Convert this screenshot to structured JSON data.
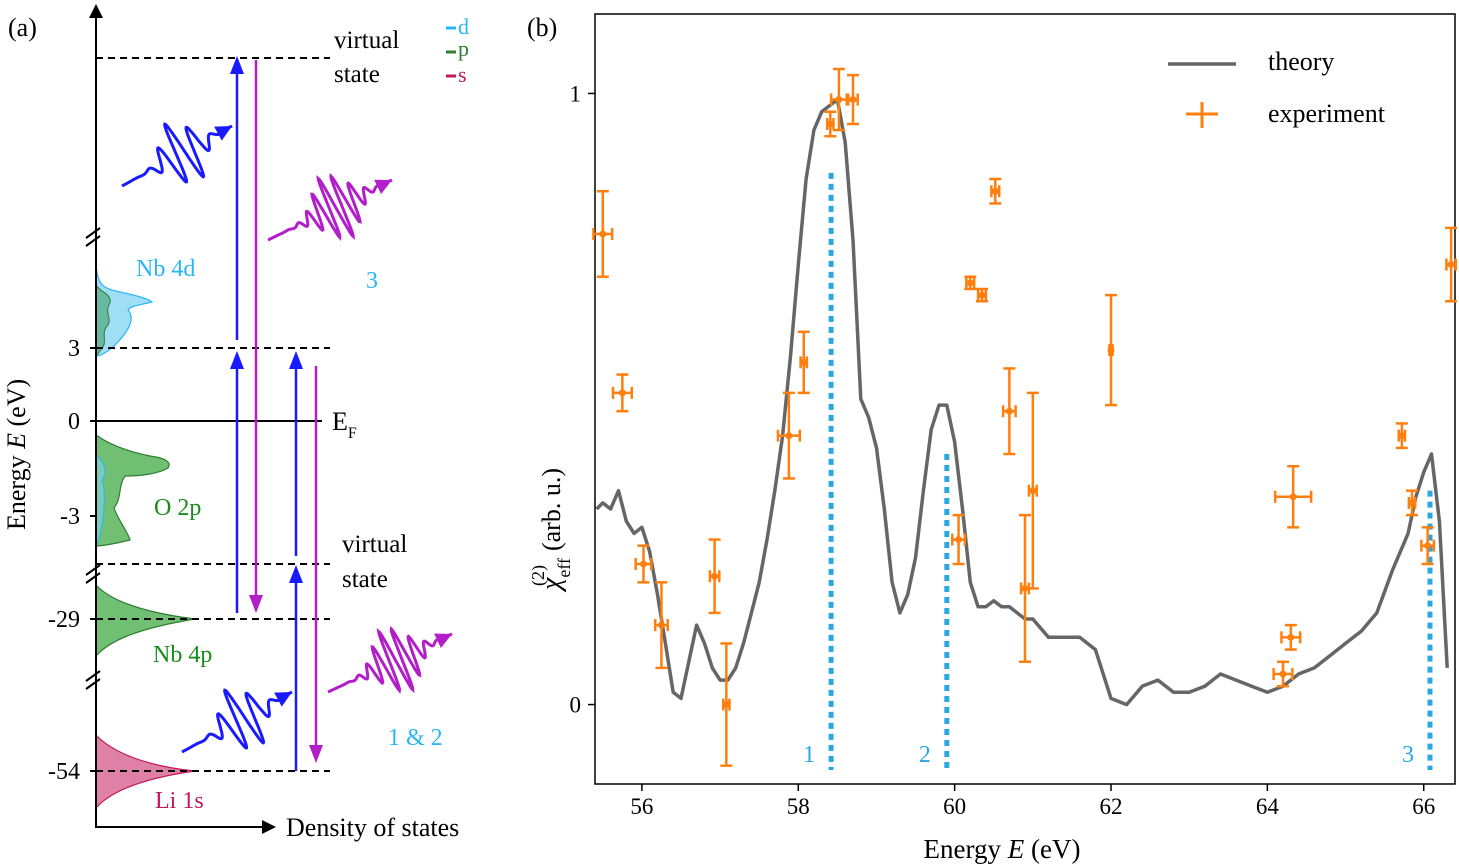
{
  "panel_a": {
    "label": "(a)",
    "ylabel_prefix": "Energy",
    "ylabel_var": "E",
    "ylabel_unit": "(eV)",
    "xlabel": "Density of states",
    "ticks": [
      "3",
      "0",
      "-3",
      "-29",
      "-54"
    ],
    "fermi_main": "E",
    "fermi_sub": "F",
    "bands": {
      "nb4d": "Nb 4d",
      "o2p": "O 2p",
      "nb4p": "Nb 4p",
      "li1s": "Li 1s"
    },
    "virtual_top": [
      "virtual",
      "state"
    ],
    "virtual_bottom": [
      "virtual",
      "state"
    ],
    "legend": [
      {
        "label": "d",
        "color": "#29b6f6"
      },
      {
        "label": "p",
        "color": "#2e7d32"
      },
      {
        "label": "s",
        "color": "#c2185b"
      }
    ],
    "process_labels": {
      "upper": "3",
      "lower": "1 & 2"
    },
    "colors": {
      "d_fill": "#7fd3f0",
      "p_fill": "#4caf50",
      "s_fill": "#d96b98",
      "up_arrow": "#1a1aff",
      "down_arrow": "#b21ec8",
      "band_label_cyan": "#29b6f6",
      "band_label_green": "#1a8c1a",
      "band_label_pink": "#c2185b"
    }
  },
  "panel_b": {
    "label": "(b)",
    "legend_theory": "theory",
    "legend_experiment": "experiment",
    "peak_labels": [
      "1",
      "2",
      "3"
    ],
    "xlabel_prefix": "Energy",
    "xlabel_var": "E",
    "xlabel_unit": "(eV)",
    "ylabel_chi": "χ",
    "ylabel_sub": "eff",
    "ylabel_sup": "(2)",
    "ylabel_unit": "(arb. u.)"
  },
  "chart_data": {
    "type": "line",
    "xlabel": "Energy E (eV)",
    "ylabel": "χ(2)eff (arb. u.)",
    "xlim": [
      55.4,
      66.4
    ],
    "ylim": [
      -0.13,
      1.13
    ],
    "xticks": [
      56,
      58,
      60,
      62,
      64,
      66
    ],
    "yticks": [
      0,
      1
    ],
    "legend_position": "top-right",
    "grid": false,
    "series": [
      {
        "name": "theory",
        "color": "#666666",
        "x": [
          55.42,
          55.5,
          55.6,
          55.7,
          55.8,
          55.9,
          56.0,
          56.1,
          56.2,
          56.3,
          56.4,
          56.5,
          56.6,
          56.7,
          56.8,
          56.9,
          57.0,
          57.1,
          57.2,
          57.3,
          57.4,
          57.5,
          57.6,
          57.7,
          57.8,
          57.9,
          58.0,
          58.1,
          58.2,
          58.3,
          58.4,
          58.5,
          58.6,
          58.7,
          58.8,
          58.9,
          59.0,
          59.1,
          59.2,
          59.3,
          59.4,
          59.5,
          59.6,
          59.7,
          59.8,
          59.9,
          60.0,
          60.1,
          60.2,
          60.3,
          60.4,
          60.5,
          60.6,
          60.7,
          60.8,
          60.9,
          61.0,
          61.2,
          61.4,
          61.6,
          61.8,
          62.0,
          62.2,
          62.4,
          62.6,
          62.8,
          63.0,
          63.2,
          63.4,
          63.6,
          63.8,
          64.0,
          64.2,
          64.4,
          64.6,
          64.8,
          65.0,
          65.2,
          65.4,
          65.6,
          65.8,
          65.9,
          66.0,
          66.1,
          66.2,
          66.3
        ],
        "y": [
          0.32,
          0.33,
          0.32,
          0.35,
          0.3,
          0.28,
          0.29,
          0.25,
          0.18,
          0.1,
          0.02,
          0.01,
          0.07,
          0.13,
          0.1,
          0.06,
          0.04,
          0.04,
          0.06,
          0.1,
          0.15,
          0.2,
          0.27,
          0.35,
          0.44,
          0.57,
          0.72,
          0.86,
          0.94,
          0.97,
          0.98,
          0.99,
          0.92,
          0.76,
          0.5,
          0.47,
          0.42,
          0.32,
          0.2,
          0.15,
          0.18,
          0.24,
          0.35,
          0.45,
          0.49,
          0.49,
          0.43,
          0.32,
          0.2,
          0.16,
          0.16,
          0.17,
          0.16,
          0.16,
          0.15,
          0.14,
          0.14,
          0.11,
          0.11,
          0.11,
          0.09,
          0.01,
          0.0,
          0.03,
          0.04,
          0.02,
          0.02,
          0.03,
          0.05,
          0.04,
          0.03,
          0.02,
          0.03,
          0.05,
          0.06,
          0.08,
          0.1,
          0.12,
          0.15,
          0.22,
          0.28,
          0.34,
          0.38,
          0.41,
          0.3,
          0.06
        ]
      },
      {
        "name": "experiment",
        "color": "#ff7f0e",
        "points": [
          {
            "x": 55.5,
            "y": 0.77,
            "xerr": 0.12,
            "yerr": 0.07
          },
          {
            "x": 55.75,
            "y": 0.51,
            "xerr": 0.12,
            "yerr": 0.03
          },
          {
            "x": 56.02,
            "y": 0.23,
            "xerr": 0.1,
            "yerr": 0.03
          },
          {
            "x": 56.25,
            "y": 0.13,
            "xerr": 0.08,
            "yerr": 0.07
          },
          {
            "x": 56.93,
            "y": 0.21,
            "xerr": 0.06,
            "yerr": 0.06
          },
          {
            "x": 57.08,
            "y": 0.0,
            "xerr": 0.04,
            "yerr": 0.1
          },
          {
            "x": 57.88,
            "y": 0.44,
            "xerr": 0.14,
            "yerr": 0.07
          },
          {
            "x": 58.07,
            "y": 0.56,
            "xerr": 0.04,
            "yerr": 0.05
          },
          {
            "x": 58.41,
            "y": 0.95,
            "xerr": 0.04,
            "yerr": 0.02
          },
          {
            "x": 58.52,
            "y": 0.99,
            "xerr": 0.1,
            "yerr": 0.05
          },
          {
            "x": 58.7,
            "y": 0.99,
            "xerr": 0.06,
            "yerr": 0.04
          },
          {
            "x": 60.05,
            "y": 0.27,
            "xerr": 0.08,
            "yerr": 0.04
          },
          {
            "x": 60.2,
            "y": 0.69,
            "xerr": 0.05,
            "yerr": 0.01
          },
          {
            "x": 60.35,
            "y": 0.67,
            "xerr": 0.05,
            "yerr": 0.01
          },
          {
            "x": 60.52,
            "y": 0.84,
            "xerr": 0.05,
            "yerr": 0.02
          },
          {
            "x": 60.7,
            "y": 0.48,
            "xerr": 0.08,
            "yerr": 0.07
          },
          {
            "x": 60.9,
            "y": 0.19,
            "xerr": 0.05,
            "yerr": 0.12
          },
          {
            "x": 61.0,
            "y": 0.35,
            "xerr": 0.05,
            "yerr": 0.16
          },
          {
            "x": 62.0,
            "y": 0.58,
            "xerr": 0.02,
            "yerr": 0.09
          },
          {
            "x": 64.2,
            "y": 0.05,
            "xerr": 0.12,
            "yerr": 0.02
          },
          {
            "x": 64.3,
            "y": 0.11,
            "xerr": 0.12,
            "yerr": 0.02
          },
          {
            "x": 64.33,
            "y": 0.34,
            "xerr": 0.23,
            "yerr": 0.05
          },
          {
            "x": 65.72,
            "y": 0.44,
            "xerr": 0.04,
            "yerr": 0.02
          },
          {
            "x": 65.85,
            "y": 0.33,
            "xerr": 0.04,
            "yerr": 0.02
          },
          {
            "x": 66.05,
            "y": 0.26,
            "xerr": 0.08,
            "yerr": 0.03
          },
          {
            "x": 66.35,
            "y": 0.72,
            "xerr": 0.06,
            "yerr": 0.06
          }
        ]
      }
    ],
    "markers": [
      {
        "label": "1",
        "x": 58.42,
        "y_top": 0.87,
        "color": "#2aa7e0"
      },
      {
        "label": "2",
        "x": 59.9,
        "y_top": 0.41,
        "color": "#2aa7e0"
      },
      {
        "label": "3",
        "x": 66.08,
        "y_top": 0.35,
        "color": "#2aa7e0"
      }
    ]
  }
}
